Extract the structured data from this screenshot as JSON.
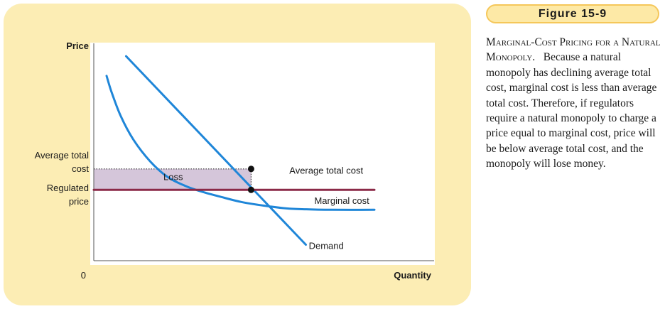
{
  "figure": {
    "badge": "Figure 15-9",
    "caption_title": "Marginal-Cost Pricing for a Natural Monopoly.",
    "caption_body": "Because a natural monopoly has declining average total cost, marginal cost is less than average total cost. Therefore, if regulators require a natural monopoly to charge a price equal to marginal cost, price will be below average total cost, and the monopoly will lose money."
  },
  "chart_data": {
    "type": "line",
    "title": "",
    "xlabel": "Quantity",
    "ylabel": "Price",
    "origin_label": "0",
    "y_tick_labels": {
      "average_total_cost_line1": "Average total",
      "average_total_cost_line2": "cost",
      "regulated_price_line1": "Regulated",
      "regulated_price_line2": "price"
    },
    "xlim": [
      0,
      100
    ],
    "ylim": [
      0,
      100
    ],
    "series": [
      {
        "name": "Average total cost",
        "color": "#1f86d8",
        "points": [
          [
            4.5,
            85.6
          ],
          [
            6.3,
            78
          ],
          [
            9.5,
            67
          ],
          [
            14,
            56
          ],
          [
            19.9,
            46
          ],
          [
            26,
            38.8
          ],
          [
            32,
            34.8
          ],
          [
            38,
            32
          ],
          [
            45,
            29.5
          ],
          [
            52,
            27.2
          ],
          [
            60,
            25.5
          ],
          [
            68,
            24.2
          ],
          [
            75,
            23.8
          ],
          [
            84,
            23.6
          ],
          [
            99,
            23.6
          ]
        ]
      },
      {
        "name": "Demand",
        "color": "#1f86d8",
        "points": [
          [
            11.4,
            94.7
          ],
          [
            74.8,
            7.4
          ]
        ]
      },
      {
        "name": "Marginal cost",
        "color": "#8b2a48",
        "points": [
          [
            0,
            32.8
          ],
          [
            99,
            32.8
          ]
        ]
      }
    ],
    "levels": {
      "average_total_cost": 42.5,
      "regulated_price": 32.8,
      "quantity": 55.5
    },
    "annotations": [
      {
        "text": "Loss",
        "x": 28,
        "y": 39
      },
      {
        "text": "Average total cost",
        "x": 82,
        "y": 42
      },
      {
        "text": "Marginal cost",
        "x": 87.5,
        "y": 28
      },
      {
        "text": "Demand",
        "x": 82,
        "y": 7
      }
    ],
    "colors": {
      "loss_fill": "#d5c6da",
      "curve": "#1f86d8",
      "mc": "#8b2a48",
      "panel": "#fcedb4"
    },
    "grid": false,
    "legend": "none"
  }
}
